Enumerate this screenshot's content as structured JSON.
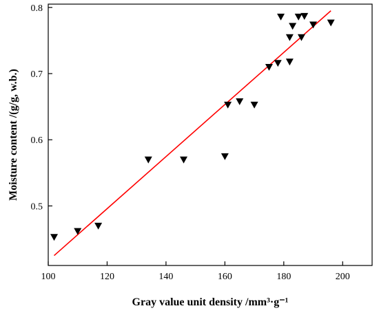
{
  "chart_data": {
    "type": "scatter",
    "title": "",
    "xlabel": "Gray value unit density /mm³·g⁻¹",
    "ylabel": "Moisture content /(g/g, w.b.)",
    "xlim": [
      100,
      210
    ],
    "ylim": [
      0.41,
      0.805
    ],
    "x_ticks": [
      100,
      120,
      140,
      160,
      180,
      200
    ],
    "y_ticks": [
      0.5,
      0.6,
      0.7,
      0.8
    ],
    "x_tick_labels": [
      "100",
      "120",
      "140",
      "160",
      "180",
      "200"
    ],
    "y_tick_labels": [
      "0.5",
      "0.6",
      "0.7",
      "0.8"
    ],
    "grid": false,
    "legend": "none",
    "marker": "triangle-down",
    "marker_color": "#000000",
    "line_color": "#ff0000",
    "points": [
      {
        "x": 102,
        "y": 0.453
      },
      {
        "x": 110,
        "y": 0.462
      },
      {
        "x": 117,
        "y": 0.47
      },
      {
        "x": 134,
        "y": 0.57
      },
      {
        "x": 146,
        "y": 0.57
      },
      {
        "x": 160,
        "y": 0.575
      },
      {
        "x": 161,
        "y": 0.653
      },
      {
        "x": 165,
        "y": 0.658
      },
      {
        "x": 170,
        "y": 0.653
      },
      {
        "x": 175,
        "y": 0.71
      },
      {
        "x": 178,
        "y": 0.716
      },
      {
        "x": 179,
        "y": 0.786
      },
      {
        "x": 182,
        "y": 0.755
      },
      {
        "x": 182,
        "y": 0.718
      },
      {
        "x": 183,
        "y": 0.772
      },
      {
        "x": 185,
        "y": 0.786
      },
      {
        "x": 186,
        "y": 0.755
      },
      {
        "x": 187,
        "y": 0.787
      },
      {
        "x": 190,
        "y": 0.774
      },
      {
        "x": 196,
        "y": 0.777
      }
    ],
    "fit_line": {
      "x": [
        102,
        196
      ],
      "y": [
        0.425,
        0.795
      ]
    }
  }
}
